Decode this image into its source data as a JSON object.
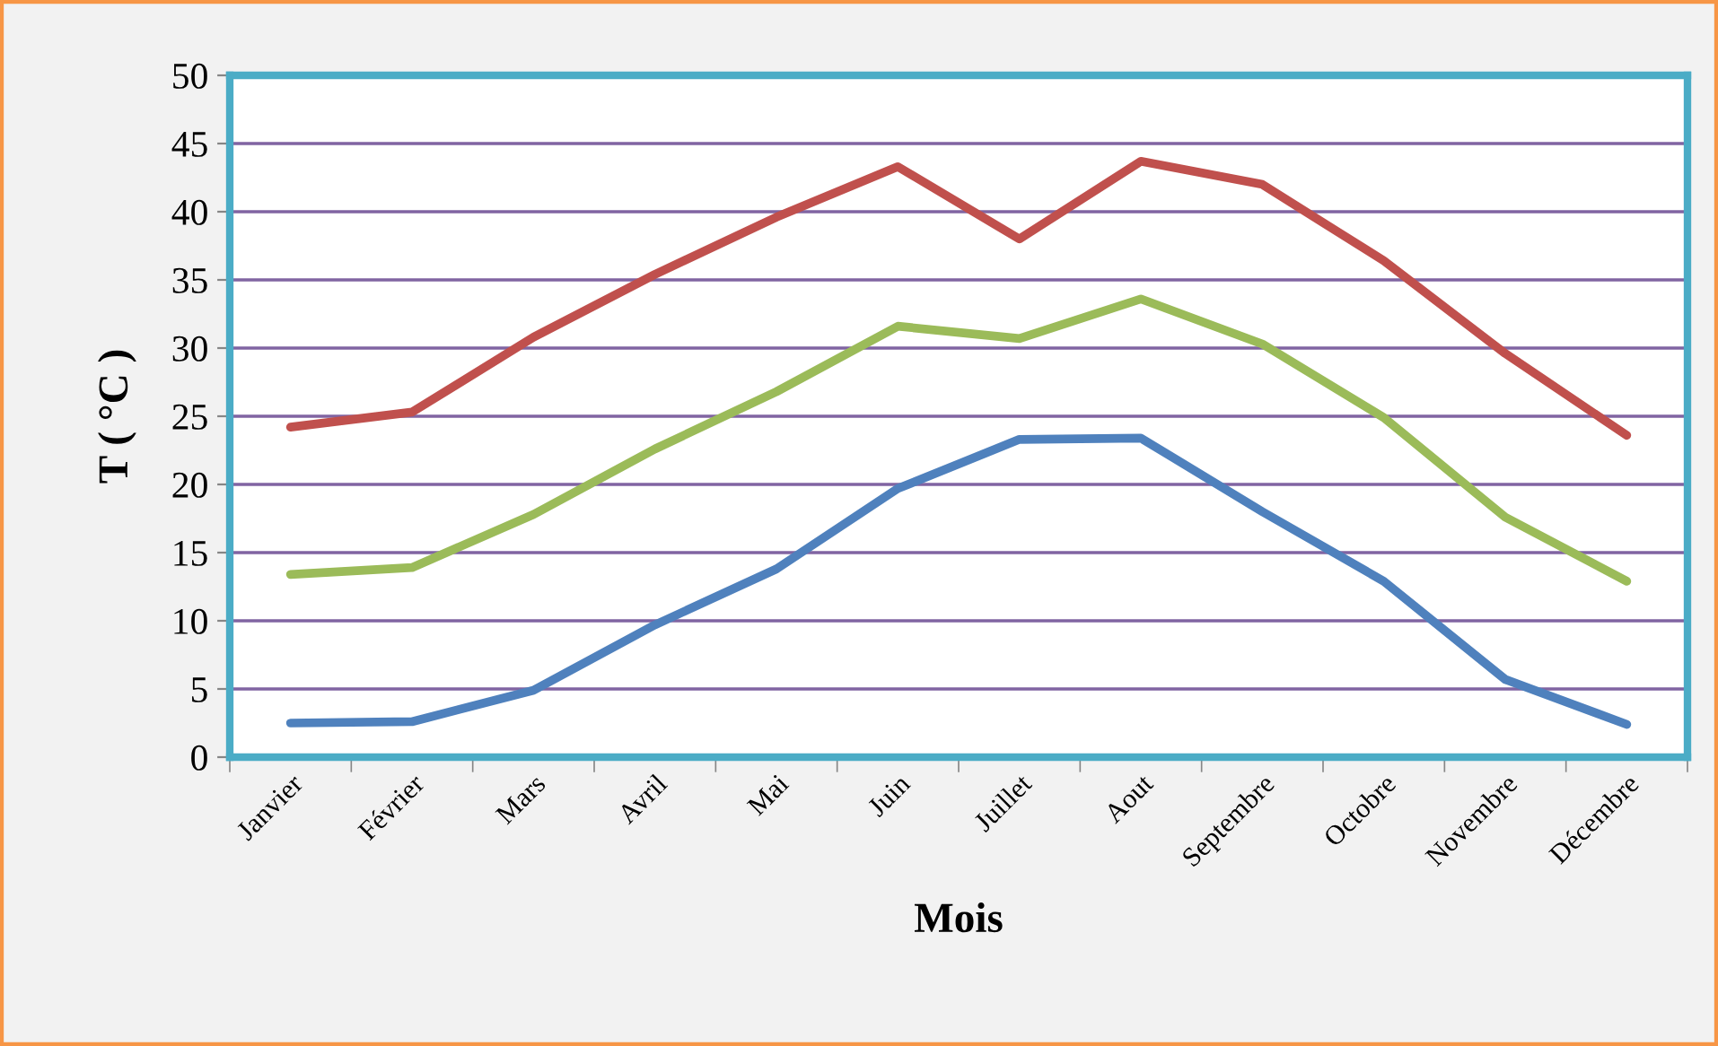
{
  "chart_data": {
    "type": "line",
    "xlabel": "Mois",
    "ylabel": "T ( °C )",
    "categories": [
      "Janvier",
      "Février",
      "Mars",
      "Avril",
      "Mai",
      "Juin",
      "Juillet",
      "Aout",
      "Septembre",
      "Octobre",
      "Novembre",
      "Décembre"
    ],
    "series": [
      {
        "color": "#c0504d",
        "values": [
          24.2,
          25.3,
          30.8,
          35.4,
          39.6,
          43.3,
          38.0,
          43.7,
          42.0,
          36.4,
          29.6,
          23.6
        ]
      },
      {
        "color": "#9bbb59",
        "values": [
          13.4,
          13.9,
          17.8,
          22.6,
          26.8,
          31.6,
          30.7,
          33.6,
          30.3,
          24.9,
          17.6,
          12.9
        ]
      },
      {
        "color": "#4f81bd",
        "values": [
          2.5,
          2.6,
          4.9,
          9.7,
          13.8,
          19.7,
          23.3,
          23.4,
          18.0,
          12.9,
          5.7,
          2.4
        ]
      }
    ],
    "ylim": [
      0,
      50
    ],
    "yticks": [
      0,
      5,
      10,
      15,
      20,
      25,
      30,
      35,
      40,
      45,
      50
    ],
    "grid": "y",
    "legend": false,
    "marker": "none",
    "line_style": "solid"
  }
}
